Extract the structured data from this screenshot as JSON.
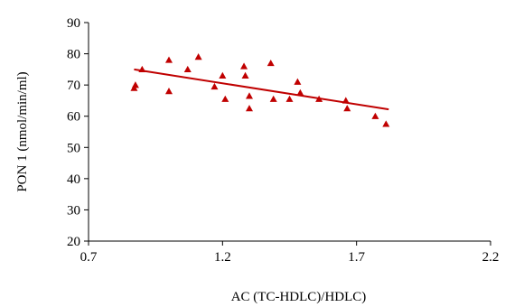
{
  "chart_data": {
    "type": "scatter",
    "title": "",
    "xlabel": "AC (TC-HDLC)/HDLC)",
    "ylabel": "PON 1 (nmol/min/ml)",
    "xlim": [
      0.7,
      2.2
    ],
    "ylim": [
      20,
      90
    ],
    "xticks": [
      0.7,
      1.2,
      1.7,
      2.2
    ],
    "xtick_labels": [
      "0.7",
      "1.2",
      "1.7",
      "2.2"
    ],
    "yticks": [
      20,
      30,
      40,
      50,
      60,
      70,
      80,
      90
    ],
    "ytick_labels": [
      "20",
      "30",
      "40",
      "50",
      "60",
      "70",
      "80",
      "90"
    ],
    "grid": false,
    "legend": "none",
    "marker": "triangle",
    "color": "#c00000",
    "points": [
      {
        "x": 0.87,
        "y": 69
      },
      {
        "x": 0.875,
        "y": 70
      },
      {
        "x": 0.9,
        "y": 75
      },
      {
        "x": 1.0,
        "y": 78
      },
      {
        "x": 1.0,
        "y": 68
      },
      {
        "x": 1.07,
        "y": 75
      },
      {
        "x": 1.11,
        "y": 79
      },
      {
        "x": 1.17,
        "y": 69.5
      },
      {
        "x": 1.2,
        "y": 73
      },
      {
        "x": 1.21,
        "y": 65.5
      },
      {
        "x": 1.28,
        "y": 76
      },
      {
        "x": 1.285,
        "y": 73
      },
      {
        "x": 1.3,
        "y": 66.5
      },
      {
        "x": 1.3,
        "y": 62.5
      },
      {
        "x": 1.38,
        "y": 77
      },
      {
        "x": 1.39,
        "y": 65.5
      },
      {
        "x": 1.45,
        "y": 65.5
      },
      {
        "x": 1.48,
        "y": 71
      },
      {
        "x": 1.49,
        "y": 67.5
      },
      {
        "x": 1.56,
        "y": 65.5
      },
      {
        "x": 1.66,
        "y": 65
      },
      {
        "x": 1.665,
        "y": 62.5
      },
      {
        "x": 1.77,
        "y": 60
      },
      {
        "x": 1.81,
        "y": 57.5
      }
    ],
    "trendline": {
      "x": [
        0.87,
        1.82
      ],
      "y": [
        75.0,
        62.2
      ]
    }
  }
}
